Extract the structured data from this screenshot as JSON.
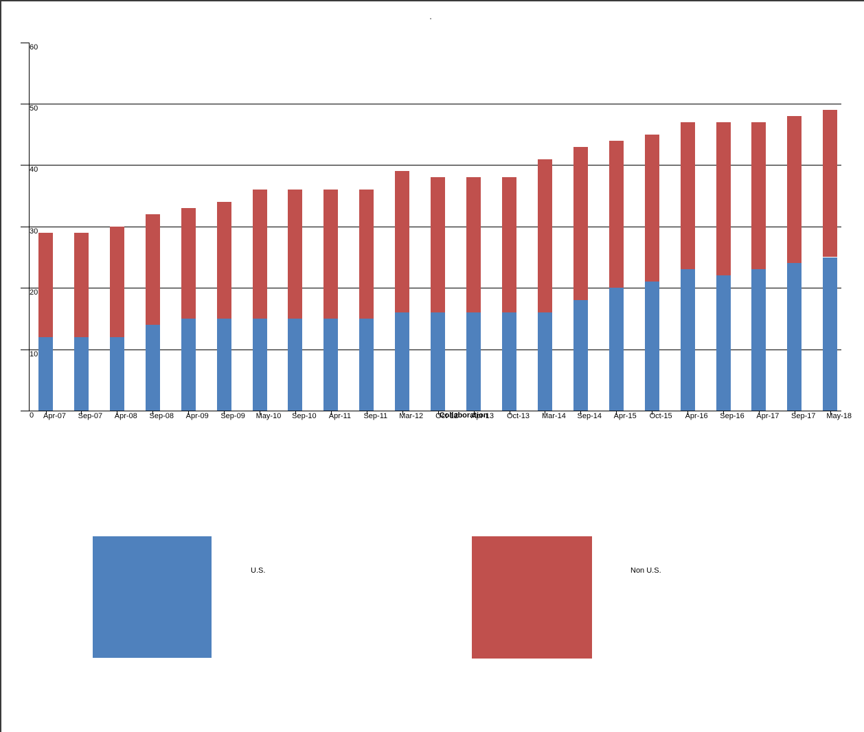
{
  "title": ".",
  "chart_data": {
    "type": "bar",
    "stacked": true,
    "title": ".",
    "xlabel": "Collaboration",
    "ylabel": "",
    "ylim": [
      0,
      60
    ],
    "ytick_interval": 10,
    "grid": true,
    "legend_position": "bottom",
    "categories": [
      "Apr-07",
      "Sep-07",
      "Apr-08",
      "Sep-08",
      "Apr-09",
      "Sep-09",
      "May-10",
      "Sep-10",
      "Apr-11",
      "Sep-11",
      "Mar-12",
      "Oct-12",
      "Apr-13",
      "Oct-13",
      "Mar-14",
      "Sep-14",
      "Apr-15",
      "Oct-15",
      "Apr-16",
      "Sep-16",
      "Apr-17",
      "Sep-17",
      "May-18"
    ],
    "series": [
      {
        "name": "U.S.",
        "color": "#4F81BD",
        "values": [
          12,
          12,
          12,
          14,
          15,
          15,
          15,
          15,
          15,
          15,
          16,
          16,
          16,
          16,
          16,
          18,
          20,
          21,
          23,
          22,
          23,
          24,
          25
        ]
      },
      {
        "name": "Non U.S.",
        "color": "#C0504D",
        "values": [
          17,
          17,
          18,
          18,
          18,
          19,
          21,
          21,
          21,
          21,
          23,
          22,
          22,
          22,
          25,
          25,
          24,
          24,
          24,
          25,
          24,
          24,
          24
        ]
      }
    ],
    "totals": [
      29,
      29,
      30,
      32,
      33,
      34,
      36,
      36,
      36,
      36,
      39,
      38,
      38,
      38,
      41,
      43,
      44,
      45,
      47,
      47,
      47,
      48,
      49
    ],
    "y_axis_origin_label": "0"
  }
}
